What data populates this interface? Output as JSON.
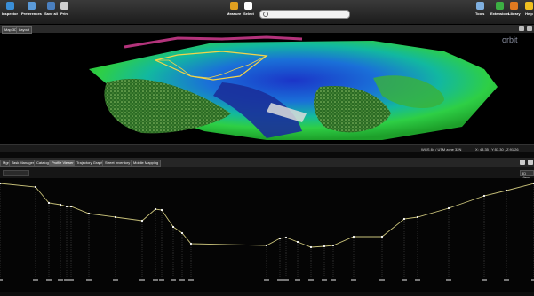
{
  "toolbar": {
    "left_items": [
      {
        "label": "Inspector",
        "icon": "inspector-icon",
        "color": "#3a8fd8"
      },
      {
        "label": "Preferences",
        "icon": "preferences-icon",
        "color": "#5b9ad8"
      },
      {
        "label": "Save all",
        "icon": "save-icon",
        "color": "#4a7fbf"
      },
      {
        "label": "Print",
        "icon": "print-icon",
        "color": "#cfcfcf"
      }
    ],
    "center_items": [
      {
        "label": "Measure",
        "icon": "measure-icon",
        "color": "#e0a020"
      },
      {
        "label": "Select",
        "icon": "select-cursor-icon",
        "color": "#ffffff"
      }
    ],
    "right_items": [
      {
        "label": "Tools",
        "icon": "tools-icon",
        "color": "#7fb0e0"
      },
      {
        "label": "Extensions",
        "icon": "extensions-icon",
        "color": "#3cb043"
      },
      {
        "label": "Library",
        "icon": "library-icon",
        "color": "#e07a20"
      },
      {
        "label": "Help",
        "icon": "help-icon",
        "color": "#f0c020"
      }
    ],
    "search_placeholder": ""
  },
  "view_tabs": [
    "Map 3D",
    "Layout"
  ],
  "viewport": {
    "logo_text": "orbit"
  },
  "statusbar": {
    "crs": "WGS 84 / UTM zone 32N",
    "coords": "X: 43.35 , Y:53.30 , Z:91.26"
  },
  "panel_tabs": [
    {
      "label": "Mgr",
      "active": false
    },
    {
      "label": "Task Manager",
      "active": false
    },
    {
      "label": "Catalog",
      "active": false
    },
    {
      "label": "Profile Viewer",
      "active": true
    },
    {
      "label": "Trajectory Graph",
      "active": false
    },
    {
      "label": "Street Inventory",
      "active": false
    },
    {
      "label": "Mobile Mapping",
      "active": false
    }
  ],
  "profile": {
    "right_button": "3D View"
  },
  "colors": {
    "profile_line": "#c9c27a",
    "vertex": "#ffffff",
    "toolbar": "#2a2a2a"
  }
}
